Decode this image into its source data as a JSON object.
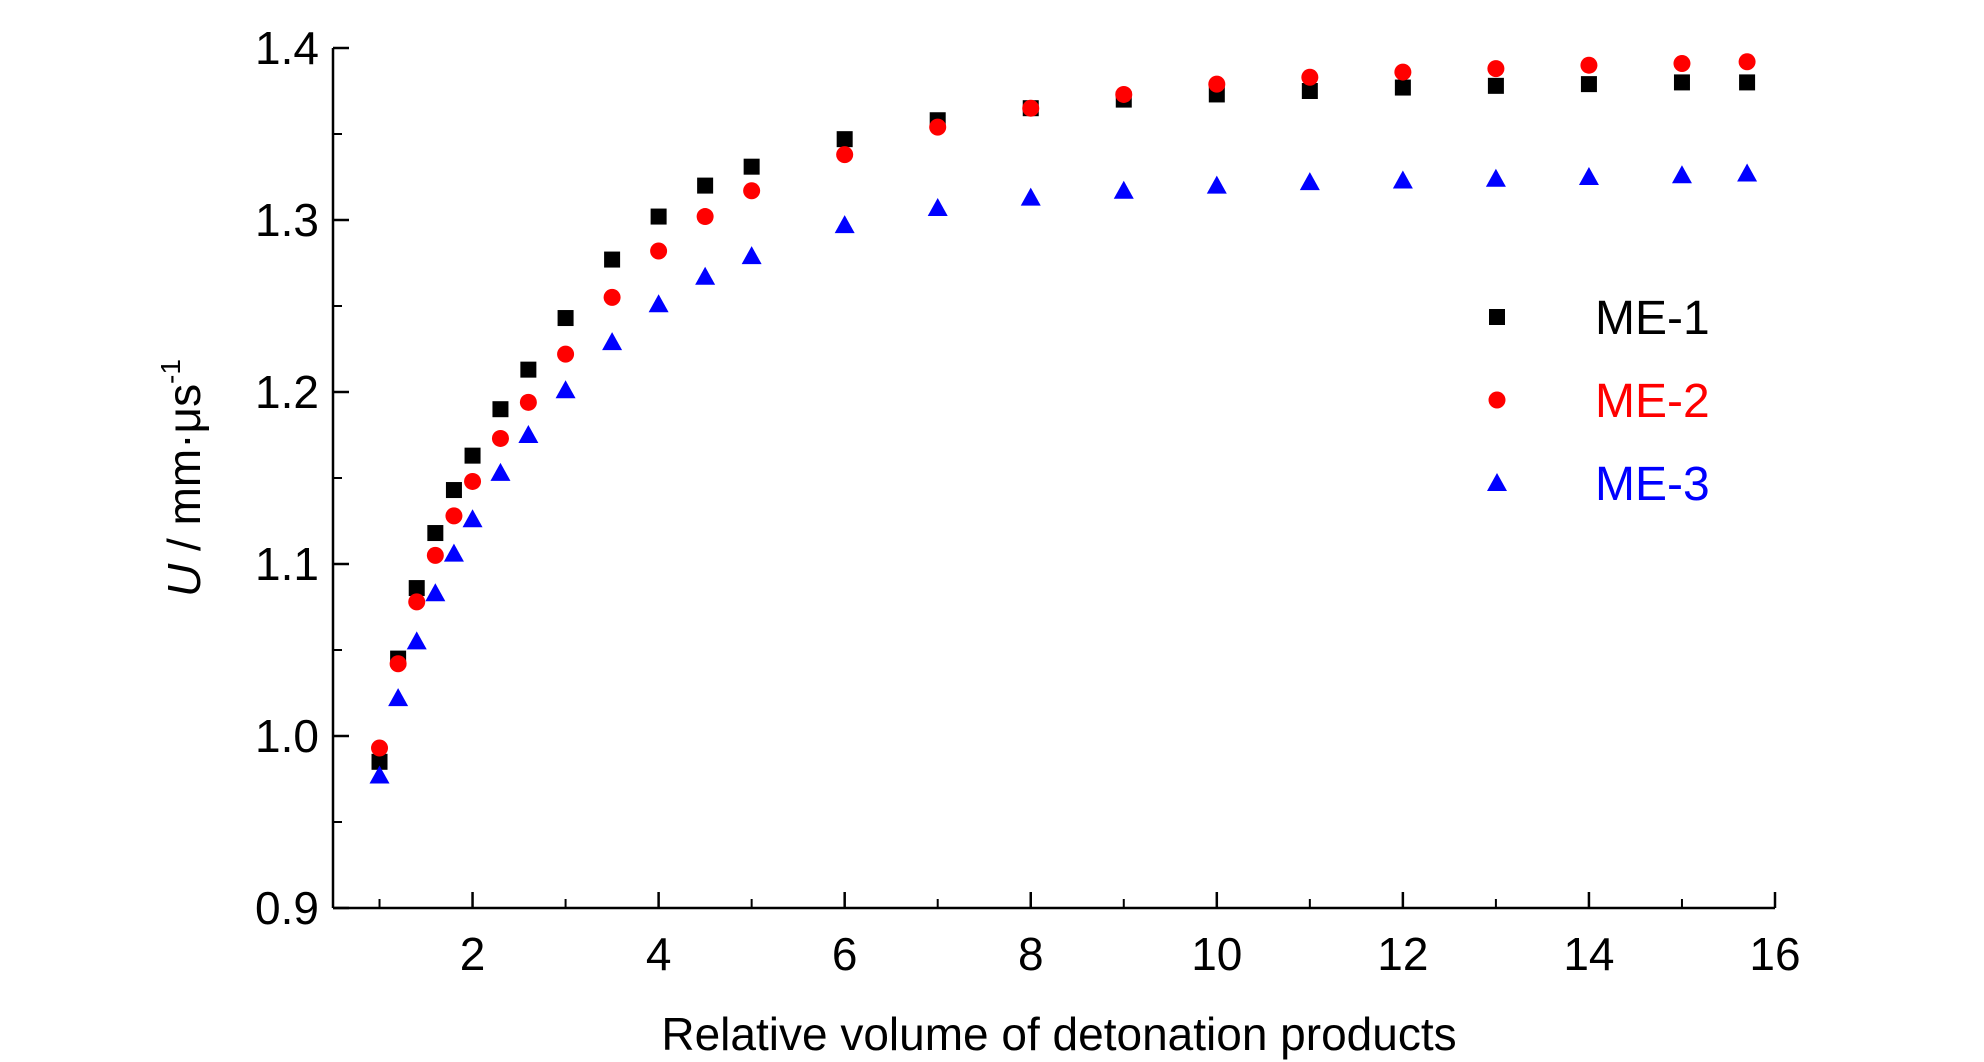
{
  "chart_data": {
    "type": "scatter",
    "xlabel": "Relative volume of detonation products",
    "ylabel": {
      "symbol": "U",
      "unit": " / mm·μs",
      "exponent": "-1"
    },
    "xlim": [
      0.5,
      16
    ],
    "ylim": [
      0.9,
      1.4
    ],
    "x_ticks": [
      2,
      4,
      6,
      8,
      10,
      12,
      14,
      16
    ],
    "x_tick_labels": [
      "2",
      "4",
      "6",
      "8",
      "10",
      "12",
      "14",
      "16"
    ],
    "y_ticks": [
      0.9,
      1.0,
      1.1,
      1.2,
      1.3,
      1.4
    ],
    "y_tick_labels": [
      "0.9",
      "1.0",
      "1.1",
      "1.2",
      "1.3",
      "1.4"
    ],
    "grid": false,
    "legend_position": "right",
    "series": [
      {
        "name": "ME-1",
        "marker": "square",
        "color": "#000000",
        "x": [
          1.0,
          1.2,
          1.4,
          1.6,
          1.8,
          2.0,
          2.3,
          2.6,
          3.0,
          3.5,
          4.0,
          4.5,
          5.0,
          6.0,
          7.0,
          8.0,
          9.0,
          10.0,
          11.0,
          12.0,
          13.0,
          14.0,
          15.0,
          15.7
        ],
        "y": [
          0.985,
          1.045,
          1.086,
          1.118,
          1.143,
          1.163,
          1.19,
          1.213,
          1.243,
          1.277,
          1.302,
          1.32,
          1.331,
          1.347,
          1.358,
          1.365,
          1.37,
          1.373,
          1.375,
          1.377,
          1.378,
          1.379,
          1.38,
          1.38
        ]
      },
      {
        "name": "ME-2",
        "marker": "circle",
        "color": "#ff0000",
        "x": [
          1.0,
          1.2,
          1.4,
          1.6,
          1.8,
          2.0,
          2.3,
          2.6,
          3.0,
          3.5,
          4.0,
          4.5,
          5.0,
          6.0,
          7.0,
          8.0,
          9.0,
          10.0,
          11.0,
          12.0,
          13.0,
          14.0,
          15.0,
          15.7
        ],
        "y": [
          0.993,
          1.042,
          1.078,
          1.105,
          1.128,
          1.148,
          1.173,
          1.194,
          1.222,
          1.255,
          1.282,
          1.302,
          1.317,
          1.338,
          1.354,
          1.365,
          1.373,
          1.379,
          1.383,
          1.386,
          1.388,
          1.39,
          1.391,
          1.392
        ]
      },
      {
        "name": "ME-3",
        "marker": "triangle",
        "color": "#0000ff",
        "x": [
          1.0,
          1.2,
          1.4,
          1.6,
          1.8,
          2.0,
          2.3,
          2.6,
          3.0,
          3.5,
          4.0,
          4.5,
          5.0,
          6.0,
          7.0,
          8.0,
          9.0,
          10.0,
          11.0,
          12.0,
          13.0,
          14.0,
          15.0,
          15.7
        ],
        "y": [
          0.977,
          1.022,
          1.055,
          1.083,
          1.106,
          1.126,
          1.153,
          1.175,
          1.201,
          1.229,
          1.251,
          1.267,
          1.279,
          1.297,
          1.307,
          1.313,
          1.317,
          1.32,
          1.322,
          1.323,
          1.324,
          1.325,
          1.326,
          1.327
        ]
      }
    ]
  }
}
